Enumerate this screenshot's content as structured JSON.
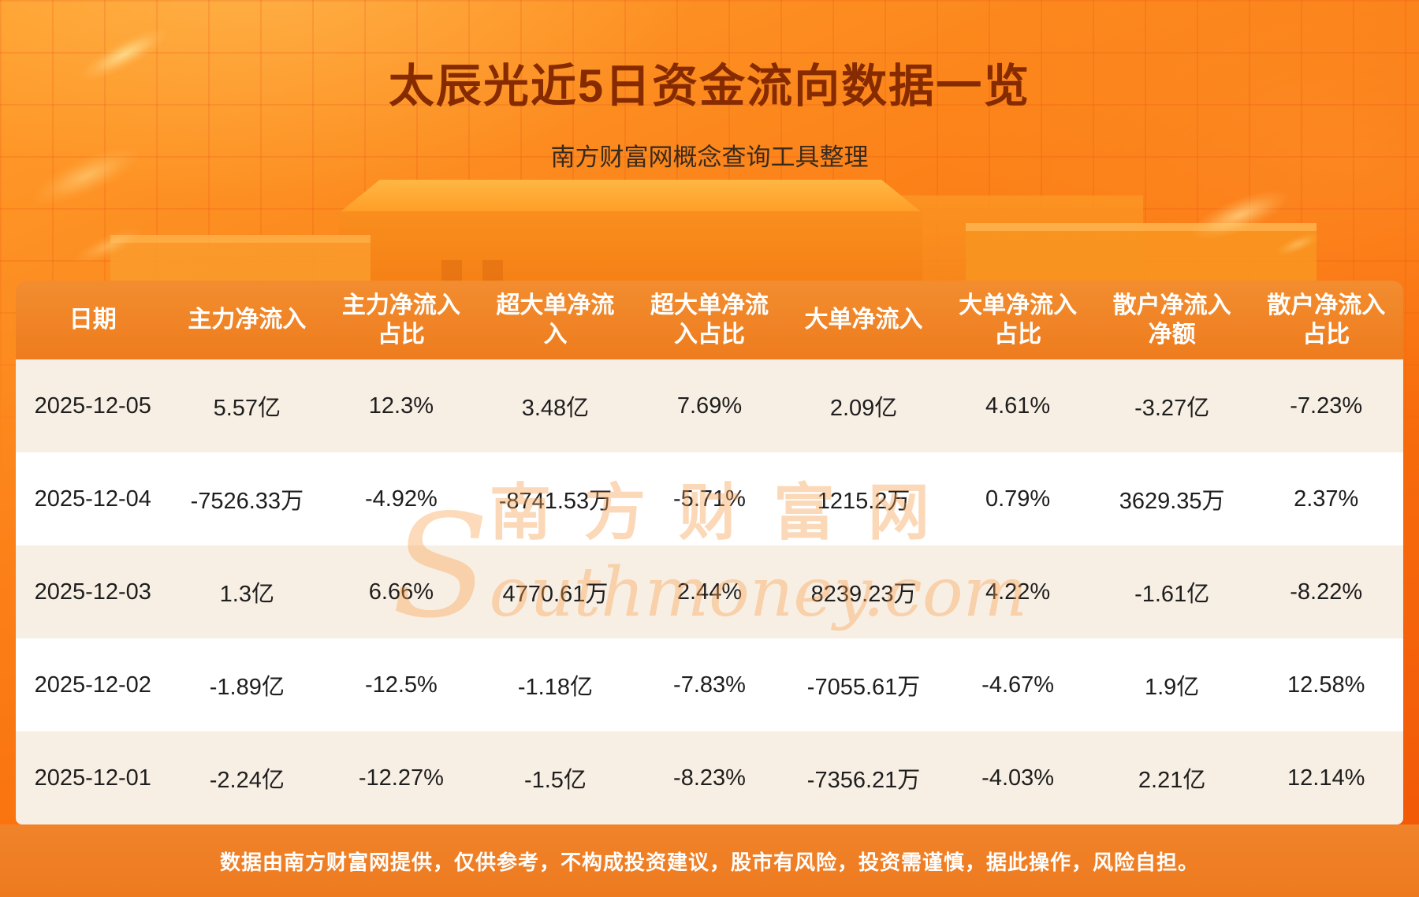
{
  "page": {
    "title": "太辰光近5日资金流向数据一览",
    "subtitle": "南方财富网概念查询工具整理",
    "disclaimer": "数据由南方财富网提供，仅供参考，不构成投资建议，股市有风险，投资需谨慎，据此操作，风险自担。",
    "watermark": {
      "cn": "南方财富网",
      "en": "Southmoney.com"
    },
    "colors": {
      "background_top": "#ff9e2c",
      "background_bottom": "#f15606",
      "table_header_bg": "#ef7e22",
      "row_alt_bg": "#f8efe4",
      "row_bg": "#ffffff",
      "title_color": "#862b00",
      "footer_bg": "#ef7f24",
      "header_text": "#ffffff",
      "body_text": "#1e1e1e"
    }
  },
  "chart_data": {
    "type": "table",
    "title": "太辰光近5日资金流向数据一览",
    "columns": [
      "日期",
      "主力净流入",
      "主力净流入占比",
      "超大单净流入",
      "超大单净流入占比",
      "大单净流入",
      "大单净流入占比",
      "散户净流入净额",
      "散户净流入占比"
    ],
    "rows": [
      [
        "2025-12-05",
        "5.57亿",
        "12.3%",
        "3.48亿",
        "7.69%",
        "2.09亿",
        "4.61%",
        "-3.27亿",
        "-7.23%"
      ],
      [
        "2025-12-04",
        "-7526.33万",
        "-4.92%",
        "-8741.53万",
        "-5.71%",
        "1215.2万",
        "0.79%",
        "3629.35万",
        "2.37%"
      ],
      [
        "2025-12-03",
        "1.3亿",
        "6.66%",
        "4770.61万",
        "2.44%",
        "8239.23万",
        "4.22%",
        "-1.61亿",
        "-8.22%"
      ],
      [
        "2025-12-02",
        "-1.89亿",
        "-12.5%",
        "-1.18亿",
        "-7.83%",
        "-7055.61万",
        "-4.67%",
        "1.9亿",
        "12.58%"
      ],
      [
        "2025-12-01",
        "-2.24亿",
        "-12.27%",
        "-1.5亿",
        "-8.23%",
        "-7356.21万",
        "-4.03%",
        "2.21亿",
        "12.14%"
      ]
    ]
  }
}
